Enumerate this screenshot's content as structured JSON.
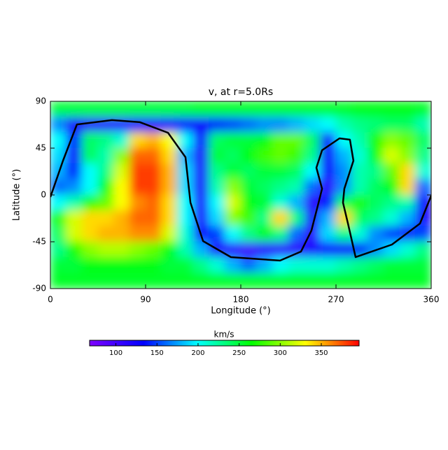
{
  "chart_data": {
    "type": "heatmap",
    "title": "v, at r=5.0Rs",
    "xlabel": "Longitude (°)",
    "ylabel": "Latitude (°)",
    "xlim": [
      0,
      360
    ],
    "ylim": [
      -90,
      90
    ],
    "xticks": [
      0,
      90,
      180,
      270,
      360
    ],
    "yticks": [
      -90,
      -45,
      0,
      45,
      90
    ],
    "x": [
      7.5,
      22.5,
      37.5,
      52.5,
      67.5,
      82.5,
      97.5,
      112.5,
      127.5,
      142.5,
      157.5,
      172.5,
      187.5,
      202.5,
      217.5,
      232.5,
      247.5,
      262.5,
      277.5,
      292.5,
      307.5,
      322.5,
      337.5,
      352.5
    ],
    "y": [
      82.5,
      67.5,
      52.5,
      37.5,
      22.5,
      7.5,
      -7.5,
      -22.5,
      -37.5,
      -52.5,
      -67.5,
      -82.5
    ],
    "z": [
      [
        250,
        250,
        250,
        250,
        250,
        250,
        250,
        250,
        250,
        255,
        255,
        255,
        255,
        255,
        255,
        255,
        255,
        255,
        255,
        260,
        260,
        260,
        260,
        255
      ],
      [
        170,
        120,
        110,
        110,
        110,
        115,
        115,
        120,
        130,
        130,
        140,
        150,
        160,
        170,
        170,
        180,
        190,
        200,
        220,
        230,
        235,
        240,
        240,
        220
      ],
      [
        200,
        140,
        240,
        230,
        210,
        340,
        350,
        330,
        200,
        130,
        240,
        250,
        250,
        260,
        290,
        290,
        240,
        130,
        200,
        220,
        270,
        300,
        290,
        240
      ],
      [
        190,
        130,
        240,
        220,
        300,
        370,
        370,
        340,
        180,
        120,
        250,
        240,
        260,
        280,
        290,
        280,
        230,
        130,
        180,
        210,
        260,
        320,
        300,
        230
      ],
      [
        180,
        140,
        200,
        230,
        320,
        380,
        380,
        350,
        190,
        120,
        230,
        250,
        240,
        250,
        250,
        240,
        200,
        130,
        170,
        220,
        230,
        290,
        340,
        210
      ],
      [
        160,
        170,
        200,
        260,
        330,
        380,
        380,
        350,
        190,
        120,
        220,
        300,
        250,
        240,
        230,
        220,
        160,
        110,
        170,
        220,
        240,
        260,
        340,
        160
      ],
      [
        200,
        220,
        270,
        290,
        330,
        360,
        370,
        340,
        200,
        120,
        200,
        320,
        260,
        250,
        210,
        180,
        110,
        140,
        240,
        270,
        240,
        230,
        220,
        130
      ],
      [
        260,
        320,
        340,
        340,
        350,
        370,
        370,
        340,
        200,
        120,
        190,
        300,
        280,
        230,
        340,
        230,
        120,
        180,
        340,
        240,
        230,
        210,
        180,
        130
      ],
      [
        240,
        320,
        340,
        350,
        350,
        360,
        360,
        320,
        210,
        130,
        150,
        200,
        230,
        260,
        230,
        160,
        110,
        190,
        230,
        210,
        170,
        150,
        130,
        150
      ],
      [
        230,
        270,
        300,
        310,
        310,
        300,
        290,
        260,
        220,
        180,
        120,
        110,
        100,
        110,
        110,
        110,
        120,
        130,
        130,
        140,
        170,
        190,
        210,
        230
      ],
      [
        250,
        250,
        260,
        260,
        260,
        260,
        260,
        250,
        250,
        230,
        210,
        180,
        160,
        180,
        200,
        210,
        210,
        210,
        220,
        230,
        240,
        250,
        250,
        250
      ],
      [
        255,
        255,
        255,
        255,
        255,
        255,
        255,
        255,
        255,
        255,
        255,
        255,
        255,
        255,
        255,
        255,
        255,
        255,
        255,
        255,
        255,
        255,
        255,
        255
      ]
    ],
    "colors": [
      "#7f00ff",
      "#0000ff",
      "#00ffff",
      "#00ff00",
      "#ffff00",
      "#ff0000"
    ],
    "clim": [
      68,
      396
    ],
    "colorbar_label": "km/s",
    "colorbar_ticks": [
      100,
      150,
      200,
      250,
      300,
      350
    ],
    "contour": {
      "color": "#000000",
      "x": [
        0,
        11.9,
        25.1,
        58.2,
        84.7,
        111.2,
        127.7,
        132.4,
        144.3,
        170.7,
        217.1,
        236.9,
        246.8,
        253.5,
        256.8,
        251.5,
        256.8,
        273.3,
        283.2,
        286.5,
        277.9,
        276.6,
        281.3,
        288.5,
        322.9,
        349.4,
        360
      ],
      "y": [
        -2.0,
        32.9,
        67.8,
        71.9,
        69.9,
        59.8,
        36.3,
        -7.4,
        -44.3,
        -59.8,
        -63.1,
        -54.4,
        -34.2,
        -7.4,
        6.0,
        26.2,
        43.0,
        54.4,
        53.1,
        32.9,
        6.0,
        -7.4,
        -27.5,
        -59.8,
        -47.7,
        -27.5,
        -0.7
      ]
    }
  }
}
